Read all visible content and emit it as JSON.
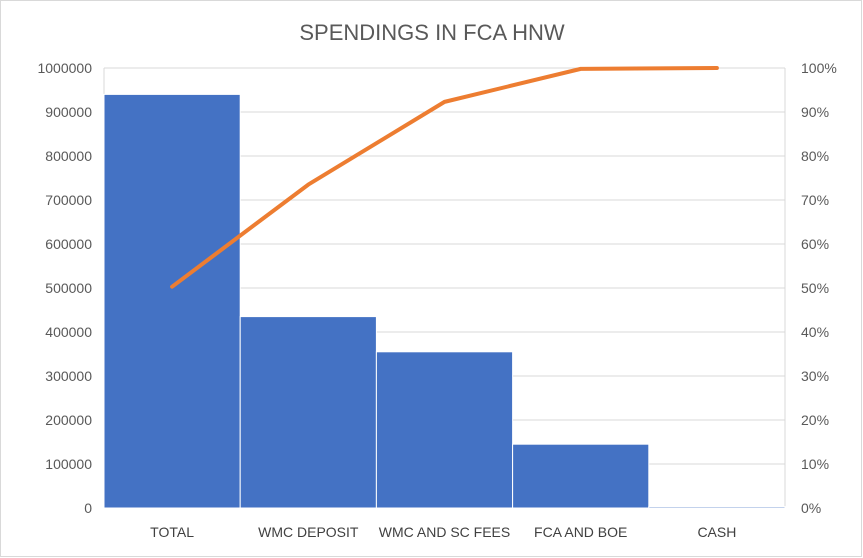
{
  "chart_data": {
    "type": "bar",
    "title": "SPENDINGS IN FCA HNW",
    "xlabel": "",
    "ylabel": "",
    "categories": [
      "TOTAL",
      "WMC DEPOSIT",
      "WMC AND SC FEES",
      "FCA AND BOE",
      "CASH"
    ],
    "series": [
      {
        "type": "bar",
        "values": [
          940000,
          435000,
          355000,
          145000,
          3000
        ],
        "color": "#4472C4"
      },
      {
        "type": "line",
        "axis": "right",
        "values": [
          50.3,
          73.5,
          92.3,
          99.8,
          100
        ],
        "color": "#ED7D31"
      }
    ],
    "ylim": [
      0,
      1000000
    ],
    "y_ticks": [
      "0",
      "100000",
      "200000",
      "300000",
      "400000",
      "500000",
      "600000",
      "700000",
      "800000",
      "900000",
      "1000000"
    ],
    "y2lim": [
      0,
      100
    ],
    "y2_ticks": [
      "0%",
      "10%",
      "20%",
      "30%",
      "40%",
      "50%",
      "60%",
      "70%",
      "80%",
      "90%",
      "100%"
    ],
    "grid": true,
    "legend": "none"
  }
}
